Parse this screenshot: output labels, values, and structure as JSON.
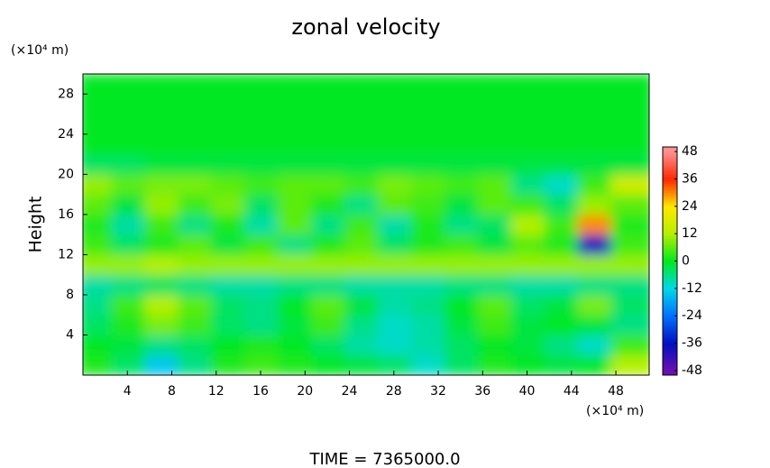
{
  "chart_data": {
    "type": "heatmap",
    "title": "zonal velocity",
    "y_label": "Height",
    "x_unit": "(×10⁴ m)",
    "y_unit": "(×10⁴ m)",
    "footer": "TIME = 7365000.0",
    "xlim": [
      0,
      51
    ],
    "ylim": [
      0,
      30
    ],
    "xticks": [
      4,
      8,
      12,
      16,
      20,
      24,
      28,
      32,
      36,
      40,
      44,
      48
    ],
    "yticks": [
      4,
      8,
      12,
      16,
      20,
      24,
      28
    ],
    "x": [
      1.5,
      4.5,
      7.5,
      10.5,
      13.5,
      16.5,
      19.5,
      22.5,
      25.5,
      28.5,
      31.5,
      34.5,
      37.5,
      40.5,
      43.5,
      46.5,
      49.5
    ],
    "y": [
      1,
      3,
      5,
      7,
      9,
      11,
      13,
      15,
      17,
      19,
      21,
      23,
      25,
      27,
      29
    ],
    "z": [
      [
        2,
        -4,
        -14,
        -6,
        2,
        4,
        2,
        0,
        -2,
        -4,
        -10,
        -4,
        2,
        0,
        -2,
        0,
        12
      ],
      [
        0,
        -2,
        -6,
        -4,
        0,
        2,
        0,
        -4,
        -8,
        -10,
        -8,
        -4,
        0,
        -2,
        -6,
        -10,
        4
      ],
      [
        -4,
        2,
        8,
        4,
        -4,
        -6,
        -2,
        4,
        -6,
        -10,
        -8,
        -2,
        4,
        -2,
        0,
        -2,
        -6
      ],
      [
        -6,
        4,
        12,
        6,
        -4,
        -6,
        0,
        6,
        -2,
        -8,
        -6,
        0,
        6,
        -4,
        -2,
        8,
        -4
      ],
      [
        -8,
        -6,
        -4,
        -6,
        -8,
        -8,
        -6,
        -6,
        -8,
        -8,
        -8,
        -6,
        -6,
        -8,
        -8,
        -6,
        -6
      ],
      [
        10,
        10,
        12,
        10,
        10,
        10,
        10,
        10,
        10,
        10,
        10,
        10,
        10,
        10,
        10,
        10,
        10
      ],
      [
        4,
        -4,
        2,
        6,
        -2,
        4,
        -6,
        2,
        6,
        -4,
        2,
        4,
        -2,
        6,
        2,
        -36,
        4
      ],
      [
        2,
        -8,
        4,
        -6,
        2,
        -8,
        6,
        -6,
        4,
        -8,
        2,
        -6,
        -4,
        12,
        4,
        30,
        2
      ],
      [
        6,
        -2,
        10,
        4,
        8,
        -4,
        6,
        2,
        -6,
        6,
        4,
        -2,
        6,
        4,
        -4,
        10,
        6
      ],
      [
        10,
        6,
        8,
        8,
        6,
        4,
        6,
        6,
        4,
        8,
        6,
        4,
        6,
        -6,
        -10,
        4,
        16
      ],
      [
        -4,
        -4,
        -2,
        -2,
        -2,
        -2,
        -2,
        -2,
        -2,
        -2,
        -2,
        -2,
        -2,
        -2,
        -2,
        -2,
        -2
      ],
      [
        0,
        0,
        0,
        0,
        0,
        0,
        0,
        0,
        0,
        0,
        0,
        0,
        0,
        0,
        0,
        0,
        0
      ],
      [
        0,
        0,
        0,
        0,
        0,
        0,
        0,
        0,
        0,
        0,
        0,
        0,
        0,
        0,
        0,
        0,
        0
      ],
      [
        0,
        0,
        0,
        0,
        0,
        0,
        0,
        0,
        0,
        0,
        0,
        0,
        0,
        0,
        0,
        0,
        0
      ],
      [
        0,
        0,
        0,
        0,
        0,
        0,
        0,
        0,
        0,
        0,
        0,
        0,
        0,
        0,
        0,
        0,
        0
      ]
    ],
    "colorbar": {
      "clim": [
        -50,
        50
      ],
      "ticks": [
        -48,
        -36,
        -24,
        -12,
        0,
        12,
        24,
        36,
        48
      ],
      "colors": [
        "#6a10b0",
        "#0010c0",
        "#0070ff",
        "#00d8e8",
        "#00e820",
        "#b4f000",
        "#ffe800",
        "#ff2800",
        "#ff9090"
      ]
    }
  }
}
